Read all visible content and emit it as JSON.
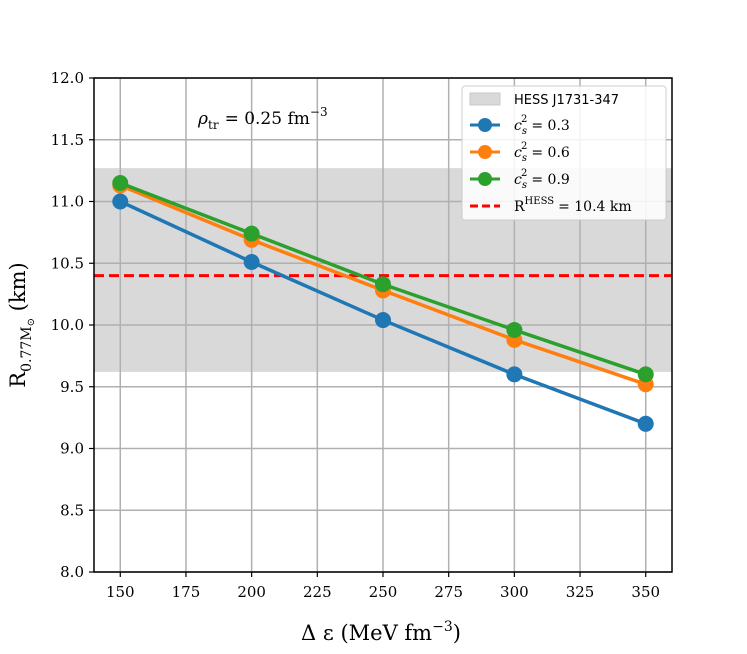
{
  "chart_data": {
    "type": "line",
    "x": [
      150,
      200,
      250,
      300,
      350
    ],
    "series": [
      {
        "name": "c_s^2 = 0.3",
        "label_base": "c",
        "label_sub": "s",
        "label_sup": "2",
        "label_rest": "= 0.3",
        "color": "#1f77b4",
        "values": [
          11.0,
          10.51,
          10.04,
          9.6,
          9.2
        ]
      },
      {
        "name": "c_s^2 = 0.6",
        "label_base": "c",
        "label_sub": "s",
        "label_sup": "2",
        "label_rest": "= 0.6",
        "color": "#ff7f0e",
        "values": [
          11.13,
          10.69,
          10.28,
          9.88,
          9.52
        ]
      },
      {
        "name": "c_s^2 = 0.9",
        "label_base": "c",
        "label_sub": "s",
        "label_sup": "2",
        "label_rest": "= 0.9",
        "color": "#2ca02c",
        "values": [
          11.15,
          10.74,
          10.33,
          9.96,
          9.6
        ]
      }
    ],
    "band": {
      "name": "HESS J1731-347",
      "y_low": 9.62,
      "y_high": 11.27,
      "color": "#d9d9d9"
    },
    "reference_line": {
      "label_base": "R",
      "label_sup": "HESS",
      "label_rest": "= 10.4 km",
      "y": 10.4,
      "color": "#ff0000"
    },
    "annotation": {
      "symbol": "ρ",
      "sub": "tr",
      "text": "= 0.25 fm",
      "sup": "−3"
    },
    "xlabel": {
      "text": "Δ ε (MeV fm",
      "sup": "−3",
      "close": ")"
    },
    "ylabel": {
      "base": "R",
      "sub": "0.77M",
      "subsub": "⊙",
      "rest": " (km)"
    },
    "xlim": [
      140,
      360
    ],
    "ylim": [
      8.0,
      12.0
    ],
    "x_ticks": [
      150,
      175,
      200,
      225,
      250,
      275,
      300,
      325,
      350
    ],
    "y_ticks": [
      "8.0",
      "8.5",
      "9.0",
      "9.5",
      "10.0",
      "10.5",
      "11.0",
      "11.5",
      "12.0"
    ],
    "grid": true,
    "legend_position": "top-right"
  }
}
